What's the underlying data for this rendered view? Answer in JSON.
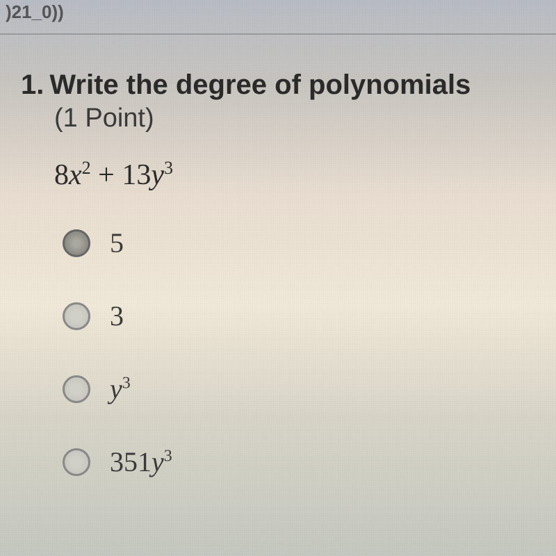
{
  "header": {
    "fragment": ")21_0))"
  },
  "question": {
    "number": "1.",
    "text": "Write the degree of polynomials",
    "points": "(1 Point)",
    "expression_coef1": "8",
    "expression_var1": "x",
    "expression_exp1": "2",
    "expression_op": " + ",
    "expression_coef2": "13",
    "expression_var2": "y",
    "expression_exp2": "3"
  },
  "options": [
    {
      "label": "5",
      "has_sup": false,
      "selected": true
    },
    {
      "label": "3",
      "has_sup": false,
      "selected": false
    },
    {
      "label_base": "y",
      "label_sup": "3",
      "has_sup": true,
      "italic": true,
      "selected": false
    },
    {
      "label_prefix": "351",
      "label_base": "y",
      "label_sup": "3",
      "has_sup": true,
      "italic_base": true,
      "selected": false
    }
  ],
  "colors": {
    "text_primary": "#2a2a2a",
    "text_secondary": "#3a3a3a",
    "radio_border": "#888888"
  }
}
